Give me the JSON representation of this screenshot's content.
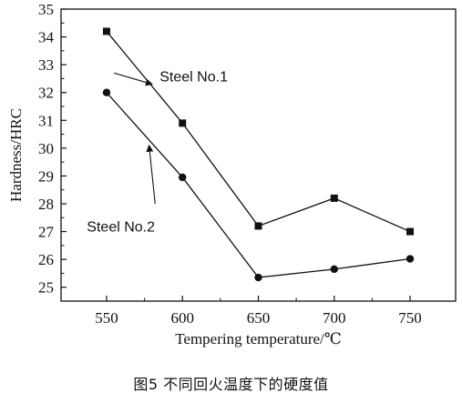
{
  "caption": "图5 不同回火温度下的硬度值",
  "chart_data": {
    "type": "line",
    "title": "",
    "xlabel": "Tempering temperature/℃",
    "ylabel": "Hardness/HRC",
    "x": [
      550,
      600,
      650,
      700,
      750
    ],
    "xlim": [
      520,
      780
    ],
    "ylim": [
      24.5,
      35
    ],
    "xticks": [
      550,
      600,
      650,
      700,
      750
    ],
    "yticks": [
      25,
      26,
      27,
      28,
      29,
      30,
      31,
      32,
      33,
      34,
      35
    ],
    "grid": false,
    "legend": "none",
    "series": [
      {
        "name": "Steel No.1",
        "marker": "square",
        "values": [
          34.2,
          30.9,
          27.2,
          28.2,
          27.0
        ]
      },
      {
        "name": "Steel No.2",
        "marker": "circle",
        "values": [
          32.0,
          28.95,
          25.35,
          25.65,
          26.02
        ]
      }
    ],
    "annotations": [
      {
        "text": "Steel No.1",
        "series": 0,
        "arrow_from": [
          580,
          32.3
        ],
        "arrow_to": [
          555,
          32.7
        ],
        "text_at": [
          585,
          32.4
        ]
      },
      {
        "text": "Steel No.2",
        "series": 1,
        "arrow_from": [
          578,
          30.1
        ],
        "arrow_to": [
          582,
          28.0
        ],
        "text_at": [
          537,
          27.0
        ]
      }
    ]
  },
  "colors": {
    "ink": "#111111"
  }
}
